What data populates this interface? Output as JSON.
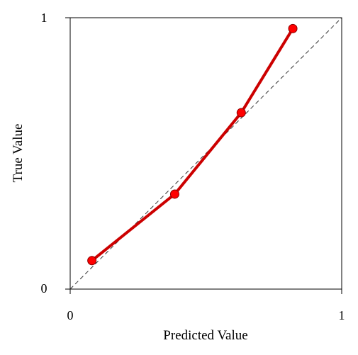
{
  "chart_data": {
    "type": "line",
    "xlabel": "Predicted Value",
    "ylabel": "True Value",
    "xlim": [
      0,
      1
    ],
    "ylim": [
      0,
      1
    ],
    "x_ticks": [
      "0",
      "1"
    ],
    "y_ticks": [
      "0",
      "1"
    ],
    "grid": false,
    "reference_line": {
      "style": "dashed",
      "from": [
        0,
        0
      ],
      "to": [
        1,
        1
      ],
      "color": "#333333"
    },
    "series": [
      {
        "color": "#cc0000",
        "marker_fill": "#ff0000",
        "points": [
          {
            "x": 0.08,
            "y": 0.105
          },
          {
            "x": 0.385,
            "y": 0.35
          },
          {
            "x": 0.63,
            "y": 0.65
          },
          {
            "x": 0.82,
            "y": 0.96
          }
        ]
      }
    ]
  }
}
